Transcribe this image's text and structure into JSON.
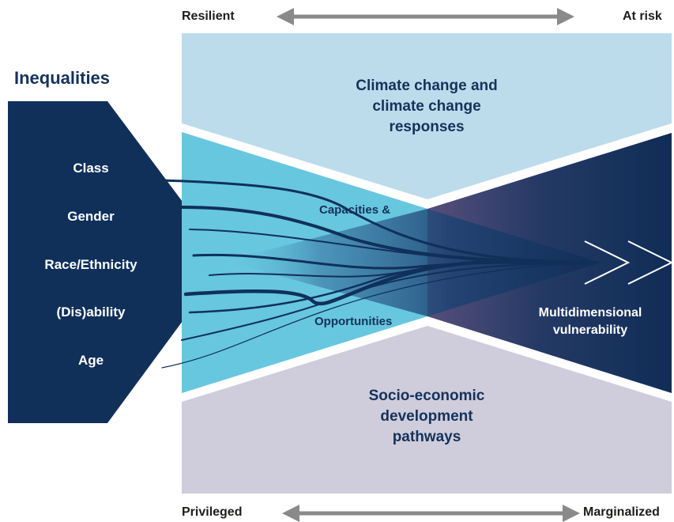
{
  "axis_top": {
    "left": "Resilient",
    "right": "At risk"
  },
  "axis_bottom": {
    "left": "Privileged",
    "right": "Marginalized"
  },
  "inequalities": {
    "title": "Inequalities",
    "items": [
      "Class",
      "Gender",
      "Race/Ethnicity",
      "(Dis)ability",
      "Age"
    ]
  },
  "panels": {
    "climate": "Climate change and climate change responses",
    "socio": "Socio-economic development pathways",
    "capacities": "Capacities &",
    "opportunities": "Opportunities",
    "vulnerability": "Multidimensional vulnerability"
  },
  "colors": {
    "navy": "#10305a",
    "light_blue": "#bcdcec",
    "cyan": "#67c7df",
    "lavender": "#cfcddc",
    "arrow_grey": "#8a8a8a"
  }
}
